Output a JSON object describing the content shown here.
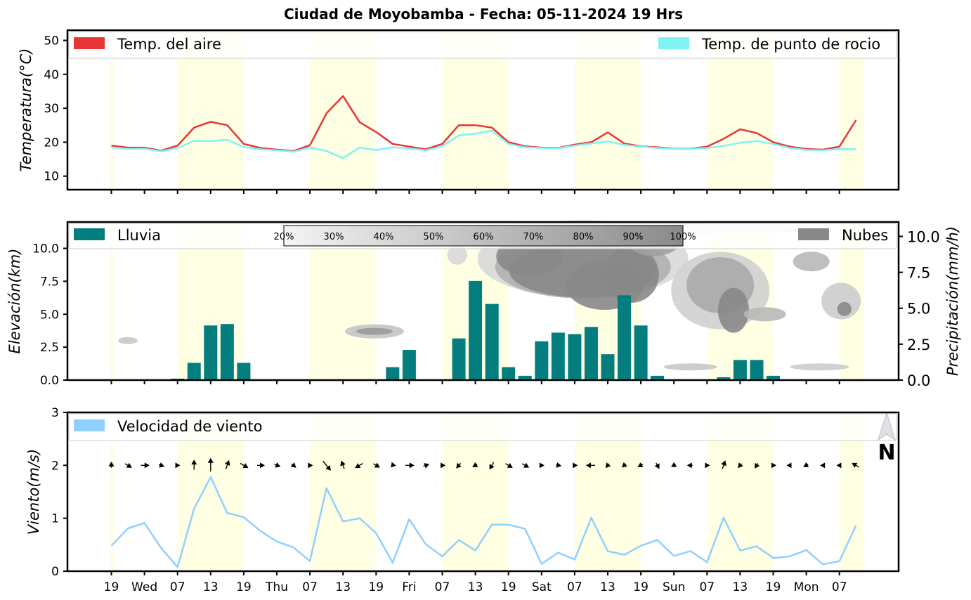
{
  "title": "Ciudad de Moyobamba   -   Fecha: 05-11-2024 19 Hrs",
  "colors": {
    "air_temp": "#e83535",
    "dew_point": "#7ff3f3",
    "rain": "#037d7d",
    "clouds": "#888888",
    "wind": "#90d0ff",
    "day_band": "#ffffe4"
  },
  "x_tick_labels": [
    "19",
    "Wed",
    "07",
    "13",
    "19",
    "Thu",
    "07",
    "13",
    "19",
    "Fri",
    "07",
    "13",
    "19",
    "Sat",
    "07",
    "13",
    "19",
    "Sun",
    "07",
    "13",
    "19",
    "Mon",
    "07"
  ],
  "chart_data": [
    {
      "type": "line",
      "ylabel": "Temperatura(°C)",
      "ylim": [
        6,
        53
      ],
      "yticks": [
        10,
        20,
        30,
        40,
        50
      ],
      "legend_position": "top",
      "series": [
        {
          "name": "Temp. del aire",
          "values": [
            19,
            18.4,
            18.4,
            17.5,
            19,
            24.3,
            26,
            25,
            19.5,
            18.3,
            17.8,
            17.4,
            19.1,
            28.5,
            33.6,
            25.9,
            23,
            19.5,
            18.7,
            17.9,
            19.5,
            25,
            25,
            24.3,
            20,
            18.8,
            18.4,
            18.3,
            19.3,
            20,
            22.9,
            19.6,
            18.8,
            18.5,
            18.1,
            18.1,
            18.7,
            21,
            23.8,
            22.7,
            20,
            18.7,
            18,
            17.8,
            18.7,
            26.5
          ]
        },
        {
          "name": "Temp. de punto de rocio",
          "values": [
            18.5,
            18,
            18.1,
            17.3,
            18.3,
            20.4,
            20.3,
            20.7,
            18.6,
            17.9,
            17.6,
            17.2,
            18.4,
            17.4,
            15.3,
            18.4,
            17.7,
            18.5,
            18.2,
            17.6,
            18.8,
            22,
            22.5,
            23.4,
            19.5,
            18.5,
            18.3,
            18.2,
            19,
            19.6,
            20.2,
            19.2,
            18.7,
            18.3,
            18,
            18,
            18.3,
            18.9,
            19.8,
            20.3,
            19.5,
            18.3,
            17.7,
            17.6,
            18,
            17.9
          ]
        }
      ]
    },
    {
      "type": "bar",
      "ylabel": "Elevación(km)",
      "ylabel_right": "Precipitación(mm/h)",
      "ylim": [
        0,
        12
      ],
      "yticks": [
        0.0,
        2.5,
        5.0,
        7.5,
        10.0
      ],
      "ylim_right": [
        0,
        11
      ],
      "yticks_right": [
        0.0,
        2.5,
        5.0,
        7.5,
        10.0
      ],
      "legend_position": "top",
      "series": [
        {
          "name": "Lluvia",
          "values": [
            0,
            0,
            0,
            0,
            0.1,
            1.2,
            3.8,
            3.9,
            1.2,
            0,
            0,
            0,
            0,
            0,
            0,
            0,
            0,
            0.9,
            2.1,
            0,
            0,
            2.9,
            6.9,
            5.3,
            0.9,
            0.3,
            2.7,
            3.3,
            3.2,
            3.7,
            1.8,
            5.9,
            3.8,
            0.3,
            0,
            0,
            0,
            0.2,
            1.4,
            1.4,
            0.3,
            0,
            0,
            0,
            0,
            0
          ]
        },
        {
          "name": "Nubes",
          "values": []
        }
      ],
      "colorbar_labels": [
        "20%",
        "30%",
        "40%",
        "50%",
        "60%",
        "70%",
        "80%",
        "90%",
        "100%"
      ]
    },
    {
      "type": "line",
      "ylabel": "Viento(m/s)",
      "ylim": [
        0,
        3
      ],
      "yticks": [
        0,
        1,
        2,
        3
      ],
      "legend_position": "top-left",
      "north_label": "N",
      "series": [
        {
          "name": "Velocidad de viento",
          "values": [
            0.48,
            0.81,
            0.91,
            0.44,
            0.08,
            1.18,
            1.78,
            1.1,
            1.02,
            0.76,
            0.56,
            0.45,
            0.19,
            1.57,
            0.94,
            1.0,
            0.72,
            0.16,
            0.98,
            0.51,
            0.28,
            0.59,
            0.39,
            0.88,
            0.88,
            0.8,
            0.14,
            0.35,
            0.22,
            1.01,
            0.38,
            0.31,
            0.48,
            0.59,
            0.29,
            0.38,
            0.17,
            1.01,
            0.39,
            0.47,
            0.25,
            0.28,
            0.4,
            0.13,
            0.19,
            0.86
          ]
        }
      ],
      "wind_direction_deg": [
        180,
        300,
        270,
        290,
        270,
        180,
        180,
        200,
        300,
        270,
        290,
        310,
        270,
        320,
        160,
        60,
        300,
        40,
        270,
        250,
        270,
        40,
        60,
        30,
        300,
        300,
        270,
        280,
        270,
        90,
        40,
        50,
        60,
        330,
        60,
        90,
        270,
        200,
        40,
        30,
        270,
        90,
        60,
        90,
        90,
        120
      ]
    }
  ]
}
